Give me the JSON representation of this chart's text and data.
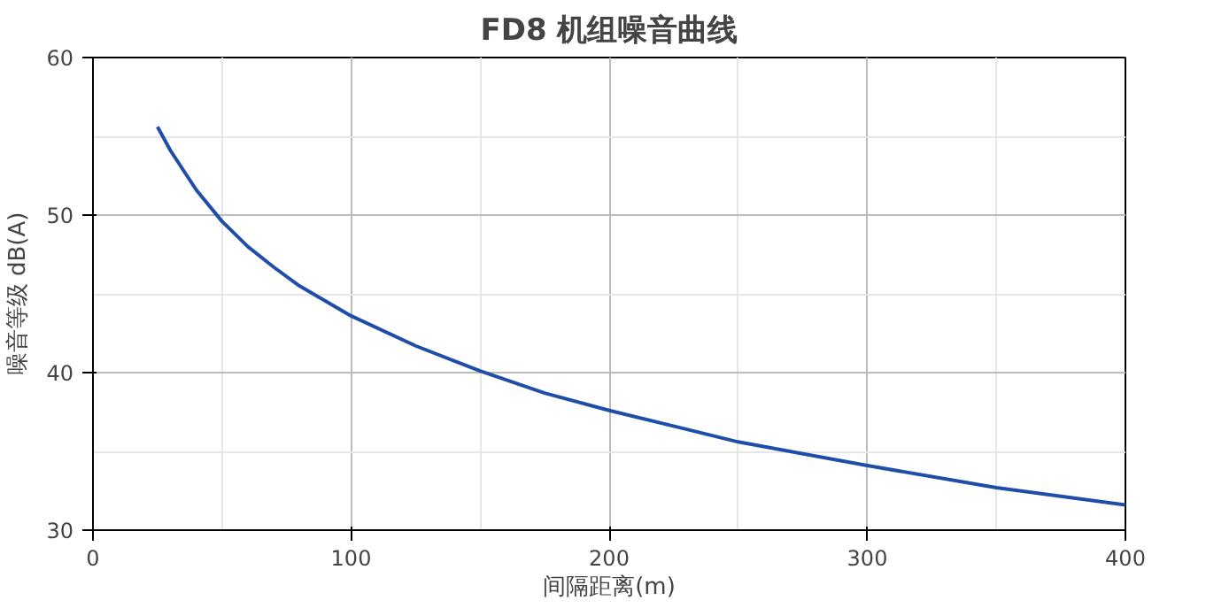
{
  "chart_data": {
    "type": "line",
    "title": "FD8 机组噪音曲线",
    "xlabel": "间隔距离(m)",
    "ylabel": "噪音等级 dB(A)",
    "x": [
      25,
      30,
      40,
      50,
      60,
      70,
      80,
      100,
      125,
      150,
      175,
      200,
      250,
      300,
      350,
      400
    ],
    "series": [
      {
        "color": "#1f4ea8",
        "values": [
          55.6,
          54.1,
          51.6,
          49.6,
          48.0,
          46.7,
          45.5,
          43.6,
          41.7,
          40.1,
          38.7,
          37.6,
          35.6,
          34.1,
          32.7,
          31.6
        ]
      }
    ],
    "xlim": [
      0,
      400
    ],
    "xticks": [
      0,
      100,
      200,
      300,
      400
    ],
    "ylim": [
      30,
      60
    ],
    "yticks": [
      30,
      40,
      50,
      60
    ],
    "grid": true,
    "marker": "none",
    "line_style": "solid"
  }
}
